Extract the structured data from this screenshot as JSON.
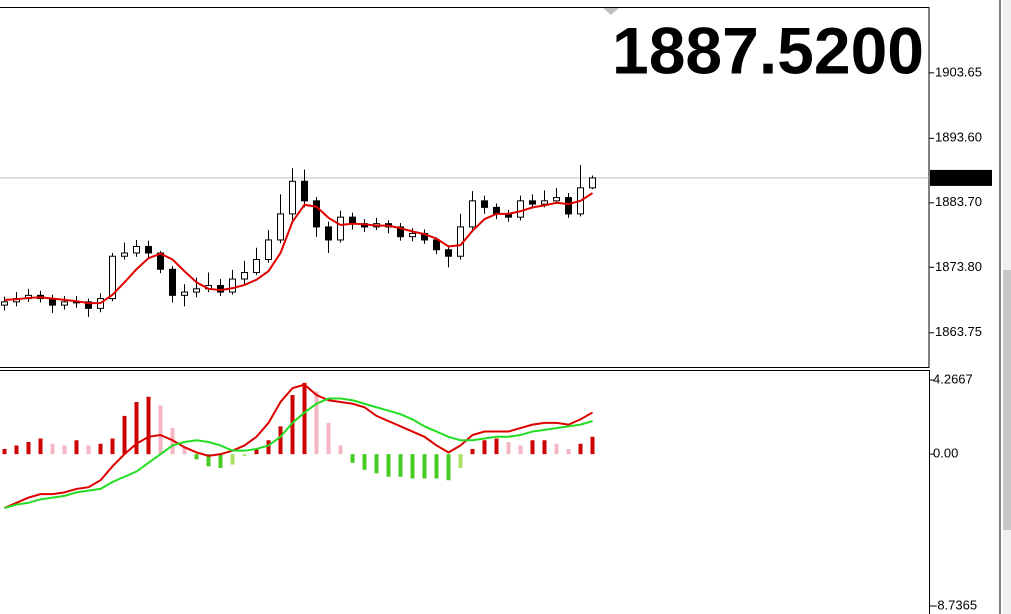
{
  "chart_data": [
    {
      "type": "candlestick",
      "big_price": "1887.5200",
      "last_price": {
        "value": 1887.52,
        "label": "1887.52"
      },
      "ylim": [
        1858.5,
        1913.6
      ],
      "yticks": [
        1863.75,
        {
          "value": 1873.8,
          "label": "1873.80"
        },
        {
          "value": 1883.7,
          "label": "1883.70"
        },
        {
          "value": 1893.6,
          "label": "1893.60"
        },
        1903.65
      ],
      "up_color": "#ffffff",
      "down_color": "#000000",
      "price_color": "#ff0000",
      "open": [
        1868,
        1868.5,
        1869,
        1869.5,
        1869,
        1868,
        1868.5,
        1868.5,
        1867.5,
        1869,
        1875.5,
        1876,
        1877,
        1876,
        1873.5,
        1869.5,
        1870,
        1870.5,
        1871,
        1870,
        1872,
        1873,
        1875,
        1878,
        1882,
        1887,
        1884,
        1880,
        1878,
        1881.5,
        1880.5,
        1880,
        1880.5,
        1880,
        1878.5,
        1879,
        1878,
        1876.5,
        1875.5,
        1880,
        1884,
        1883,
        1882,
        1881.5,
        1884,
        1883.5,
        1884,
        1884.5,
        1882,
        1886
      ],
      "high": [
        1869.3,
        1870,
        1870.5,
        1870.2,
        1869.6,
        1869.4,
        1869.4,
        1869,
        1869.8,
        1876,
        1877.6,
        1878,
        1877.9,
        1876.3,
        1874,
        1871.2,
        1872.2,
        1873,
        1872,
        1873.4,
        1874.8,
        1876.8,
        1879.5,
        1885,
        1889,
        1888.8,
        1884.6,
        1880.8,
        1882.5,
        1882.2,
        1881.2,
        1881.4,
        1881,
        1880.6,
        1879.8,
        1879.6,
        1878.4,
        1877.2,
        1882,
        1885.5,
        1884.8,
        1883.6,
        1882.6,
        1884.8,
        1885,
        1885.6,
        1886,
        1885.2,
        1889.5,
        1887.9
      ],
      "low": [
        1867.2,
        1867.8,
        1868.5,
        1868.4,
        1866.8,
        1867.3,
        1867.6,
        1866.2,
        1866.9,
        1868.6,
        1875,
        1875.4,
        1875.2,
        1872.9,
        1868.4,
        1867.8,
        1869.2,
        1870,
        1869.4,
        1869.6,
        1871.2,
        1872.6,
        1874.5,
        1877.5,
        1881,
        1883,
        1878.5,
        1876,
        1877.6,
        1879.6,
        1879.2,
        1879.5,
        1879,
        1877.9,
        1877.8,
        1877.4,
        1875.8,
        1873.8,
        1875,
        1879.6,
        1882,
        1881.2,
        1880.8,
        1881,
        1882.8,
        1883,
        1883.6,
        1881.4,
        1881.6,
        1885.8
      ],
      "close": [
        1868.5,
        1869,
        1869.5,
        1869,
        1868,
        1868.5,
        1868.5,
        1867.5,
        1869,
        1875.5,
        1876,
        1877,
        1876,
        1873.5,
        1869.5,
        1870,
        1870.5,
        1871,
        1870,
        1872,
        1873,
        1875,
        1878,
        1882,
        1887,
        1884,
        1880,
        1878,
        1881.5,
        1880.5,
        1880,
        1880.5,
        1880,
        1878.5,
        1879,
        1878,
        1876.5,
        1875.5,
        1880,
        1884,
        1883,
        1882,
        1881.5,
        1884,
        1883.5,
        1884,
        1884.5,
        1882,
        1886,
        1887.52
      ],
      "overlay": {
        "color": "#e00000",
        "values": [
          1868.8,
          1868.9,
          1869.1,
          1869.2,
          1869,
          1868.8,
          1868.6,
          1868.3,
          1868.3,
          1869.6,
          1871.5,
          1873.5,
          1875.2,
          1875.9,
          1875,
          1873.2,
          1871.5,
          1870.5,
          1870.3,
          1870.6,
          1871.1,
          1871.9,
          1873.2,
          1876,
          1880.8,
          1883.4,
          1883.1,
          1881.4,
          1880.3,
          1880.5,
          1880.4,
          1880.2,
          1880.2,
          1879.8,
          1879.3,
          1878.9,
          1878.2,
          1877,
          1877.2,
          1879.4,
          1881.2,
          1882,
          1882,
          1882.4,
          1883,
          1883.3,
          1883.7,
          1883.5,
          1884,
          1885.2
        ]
      }
    },
    {
      "type": "macd",
      "ylim": [
        -8.7365,
        4.2667
      ],
      "yticks": [
        -8.7365,
        {
          "value": 0,
          "label": "0.00"
        },
        4.2667
      ],
      "histogram": {
        "colors": [
          "#cc0000",
          "#f4b6c2",
          "#44cc22",
          "#a8e060"
        ],
        "values": [
          0.3,
          0.5,
          0.7,
          0.9,
          0.6,
          0.5,
          0.8,
          0.5,
          0.6,
          0.9,
          2.2,
          3.0,
          3.3,
          2.8,
          1.5,
          0.4,
          -0.3,
          -0.7,
          -0.8,
          -0.6,
          -0.1,
          0.3,
          0.8,
          1.6,
          3.4,
          4.1,
          3.6,
          1.8,
          0.5,
          -0.5,
          -0.9,
          -1.1,
          -1.3,
          -1.3,
          -1.4,
          -1.4,
          -1.4,
          -1.5,
          -0.8,
          0.3,
          0.8,
          0.9,
          0.7,
          0.5,
          0.8,
          0.8,
          0.6,
          0.3,
          0.6,
          1.0
        ]
      },
      "lines": [
        {
          "color": "#dd0000",
          "values": [
            -3.1,
            -2.8,
            -2.5,
            -2.3,
            -2.3,
            -2.2,
            -2.0,
            -1.9,
            -1.5,
            -0.7,
            0,
            0.6,
            1.0,
            1.1,
            0.8,
            0.4,
            0.1,
            -0.1,
            0,
            0.2,
            0.5,
            1.0,
            1.8,
            3.0,
            3.8,
            4.0,
            3.4,
            3.1,
            3.0,
            2.9,
            2.7,
            2.2,
            1.9,
            1.6,
            1.3,
            1.0,
            0.5,
            0.1,
            0.5,
            1.1,
            1.3,
            1.3,
            1.3,
            1.5,
            1.7,
            1.8,
            1.8,
            1.7,
            2.0,
            2.4
          ]
        },
        {
          "color": "#22dd22",
          "values": [
            -3.1,
            -2.9,
            -2.8,
            -2.6,
            -2.5,
            -2.4,
            -2.2,
            -2.1,
            -2.0,
            -1.6,
            -1.3,
            -1.0,
            -0.5,
            0,
            0.5,
            0.7,
            0.8,
            0.7,
            0.5,
            0.2,
            0.2,
            0.3,
            0.5,
            1.0,
            1.8,
            2.4,
            2.9,
            3.2,
            3.2,
            3.1,
            2.9,
            2.7,
            2.5,
            2.3,
            2.0,
            1.6,
            1.3,
            1.0,
            0.8,
            0.8,
            0.9,
            1.0,
            1.0,
            1.1,
            1.3,
            1.4,
            1.5,
            1.6,
            1.7,
            1.9
          ]
        }
      ]
    }
  ]
}
